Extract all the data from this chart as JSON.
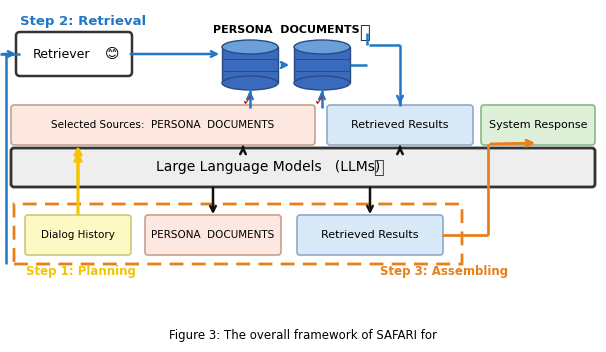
{
  "title": "Figure 3: The overall framework of SAFARI for",
  "bg_color": "#ffffff",
  "step2_label": "Step 2: Retrieval",
  "step1_label": "Step 1: Planning",
  "step3_label": "Step 3: Assembling",
  "persona_docs_top_label": "PERSONA  DOCUMENTS",
  "llm_label": "Large Language Models   (LLMs)",
  "retriever_label": "Retriever",
  "selected_sources_label": "Selected Sources:  PERSONA  DOCUMENTS",
  "retrieved_results_top_label": "Retrieved Results",
  "system_response_label": "System Response",
  "dialog_history_label": "Dialog History",
  "persona_docs_bottom_label": "PERSONA  DOCUMENTS",
  "retrieved_results_bottom_label": "Retrieved Results",
  "box_selected_sources_color": "#fce8e0",
  "box_retrieved_results_top_color": "#d8eaf8",
  "box_system_response_color": "#dff0d8",
  "box_dialog_history_color": "#fef9c3",
  "box_persona_docs_bottom_color": "#fce8e0",
  "box_retrieved_results_bottom_color": "#d8eaf8",
  "box_llm_color": "#eeeeee",
  "box_retriever_color": "#ffffff",
  "arrow_blue": "#2176c7",
  "arrow_black": "#111111",
  "arrow_orange": "#e8801a",
  "arrow_yellow": "#f5c400",
  "dashed_orange": "#e8801a",
  "step2_color": "#2176c7",
  "step1_color": "#f5c400",
  "step3_color": "#e8801a",
  "check_color": "#cc1111",
  "db_color_body": "#3a6abb",
  "db_color_top": "#6a9fd8"
}
